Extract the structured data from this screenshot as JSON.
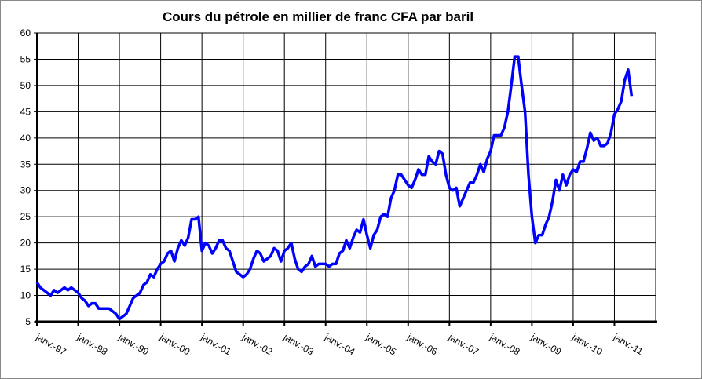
{
  "chart_data": {
    "type": "line",
    "title": "Cours du pétrole en millier de franc CFA par baril",
    "categories": [
      "janv.-97",
      null,
      null,
      null,
      null,
      null,
      null,
      null,
      null,
      null,
      null,
      null,
      "janv.-98",
      null,
      null,
      null,
      null,
      null,
      null,
      null,
      null,
      null,
      null,
      null,
      "janv.-99",
      null,
      null,
      null,
      null,
      null,
      null,
      null,
      null,
      null,
      null,
      null,
      "janv.-00",
      null,
      null,
      null,
      null,
      null,
      null,
      null,
      null,
      null,
      null,
      null,
      "janv.-01",
      null,
      null,
      null,
      null,
      null,
      null,
      null,
      null,
      null,
      null,
      null,
      "janv.-02",
      null,
      null,
      null,
      null,
      null,
      null,
      null,
      null,
      null,
      null,
      null,
      "janv.-03",
      null,
      null,
      null,
      null,
      null,
      null,
      null,
      null,
      null,
      null,
      null,
      "janv.-04",
      null,
      null,
      null,
      null,
      null,
      null,
      null,
      null,
      null,
      null,
      null,
      "janv.-05",
      null,
      null,
      null,
      null,
      null,
      null,
      null,
      null,
      null,
      null,
      null,
      "janv.-06",
      null,
      null,
      null,
      null,
      null,
      null,
      null,
      null,
      null,
      null,
      null,
      "janv.-07",
      null,
      null,
      null,
      null,
      null,
      null,
      null,
      null,
      null,
      null,
      null,
      "janv.-08",
      null,
      null,
      null,
      null,
      null,
      null,
      null,
      null,
      null,
      null,
      null,
      "janv.-09",
      null,
      null,
      null,
      null,
      null,
      null,
      null,
      null,
      null,
      null,
      null,
      "janv.-10",
      null,
      null,
      null,
      null,
      null,
      null,
      null,
      null,
      null,
      null,
      null,
      "janv.-11",
      null,
      null,
      null,
      null,
      null,
      null,
      null,
      null,
      null,
      null,
      null
    ],
    "series": [
      {
        "name": "Cours du pétrole",
        "color": "#0000ff",
        "values": [
          12.5,
          11.5,
          11,
          10.5,
          10,
          11,
          10.5,
          11,
          11.5,
          11,
          11.5,
          11,
          10.5,
          9.5,
          9,
          8,
          8.5,
          8.5,
          7.5,
          7.5,
          7.5,
          7.5,
          7,
          6.5,
          5.5,
          6,
          6.5,
          8,
          9.5,
          10,
          10.5,
          12,
          12.5,
          14,
          13.5,
          15,
          16,
          16.5,
          18,
          18.5,
          16.5,
          19,
          20.5,
          19.5,
          21,
          24.5,
          24.5,
          25,
          18.5,
          20,
          19.5,
          18,
          19,
          20.5,
          20.5,
          19,
          18.5,
          16.5,
          14.5,
          14,
          13.5,
          14,
          15,
          17,
          18.5,
          18,
          16.5,
          17,
          17.5,
          19,
          18.5,
          16.5,
          18.5,
          19,
          20,
          17,
          15,
          14.5,
          15.5,
          16,
          17.5,
          15.5,
          16,
          16,
          16,
          15.5,
          16,
          16,
          18,
          18.5,
          20.5,
          19,
          21,
          22.5,
          22,
          24.5,
          21.5,
          19,
          21.5,
          22.5,
          25,
          25.5,
          25,
          28.5,
          30,
          33,
          33,
          32,
          31,
          30.5,
          32,
          34,
          33,
          33,
          36.5,
          35.5,
          35,
          37.5,
          37,
          33,
          30.5,
          30,
          30.5,
          27,
          28.5,
          30,
          31.5,
          31.5,
          33,
          35,
          33.5,
          36,
          37.5,
          40.5,
          40.5,
          40.5,
          42,
          45,
          50,
          55.5,
          55.5,
          50,
          45,
          33,
          25,
          20,
          21.5,
          21.5,
          23.5,
          25,
          28,
          32,
          30,
          33,
          31,
          33,
          34,
          33.5,
          35.5,
          35.5,
          38,
          41,
          39.5,
          40,
          38.5,
          38.5,
          39,
          41,
          44.5,
          45.5,
          47,
          51,
          53,
          48,
          null,
          null,
          null,
          null,
          null,
          null
        ]
      }
    ],
    "ylim": [
      5,
      60
    ],
    "yticks": [
      5,
      10,
      15,
      20,
      25,
      30,
      35,
      40,
      45,
      50,
      55,
      60
    ],
    "grid": true
  }
}
